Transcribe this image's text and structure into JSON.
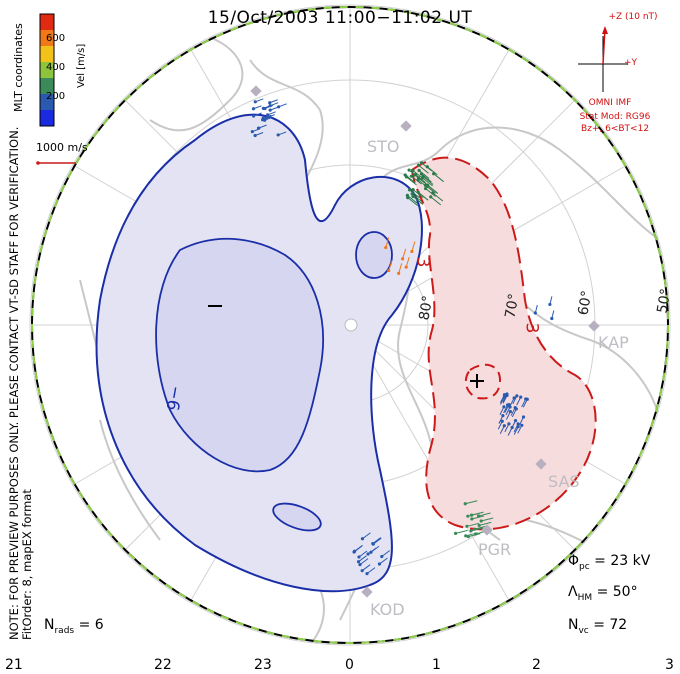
{
  "title": "15/Oct/2003 11:00−11:02 UT",
  "side_note_1": "NOTE: FOR PREVIEW PURPOSES ONLY. PLEASE CONTACT VT-SD STAFF FOR VERIFICATION.",
  "side_note_2": "FitOrder: 8, mapEX format",
  "colorbar": {
    "title": "Vel [m/s]",
    "ticks": [
      "600",
      "400",
      "200"
    ],
    "colors": [
      "#e02a12",
      "#f07818",
      "#f2c21a",
      "#8cc43c",
      "#3a8a5a",
      "#2a5ab0",
      "#1a2ae0"
    ],
    "coord_label": "MLT coordinates"
  },
  "scale_label": "1000 m/s",
  "imf": {
    "z_label": "+Z (10 nT)",
    "y_label": "+Y",
    "source": "OMNI IMF",
    "model": "Stat Mod: RG96",
    "condition": "Bz+, 6<BT<12"
  },
  "stats": {
    "phi_symbol": "Φ",
    "phi_sub": "pc",
    "phi_value": "= 23 kV",
    "lambda_symbol": "Λ",
    "lambda_sub": "HM",
    "lambda_value": "= 50°",
    "nvc_symbol": "N",
    "nvc_sub": "vc",
    "nvc_value": "= 72",
    "nrads_symbol": "N",
    "nrads_sub": "rads",
    "nrads_value": "= 6"
  },
  "mlt_ticks": [
    "21",
    "22",
    "23",
    "0",
    "1",
    "2",
    "3"
  ],
  "lat_labels": [
    "80°",
    "70°",
    "60°",
    "50°"
  ],
  "stations": [
    "STO",
    "KAP",
    "SAS",
    "PGR",
    "KOD"
  ],
  "contour_labels": [
    "−6",
    "3",
    "−",
    "+"
  ],
  "colors": {
    "negative_fill": "#e3e3f3",
    "negative_line": "#1a2ea8",
    "positive_fill": "#f6dcdc",
    "positive_line": "#cc1a1a",
    "boundary_green": "#8ed04a",
    "coastline": "#c8c8c8",
    "grid": "#d2d2d2"
  },
  "icons": {
    "imf_clock": "imf-clock-dial-icon",
    "min_potential": "minus-marker-icon",
    "max_potential": "plus-marker-icon"
  }
}
